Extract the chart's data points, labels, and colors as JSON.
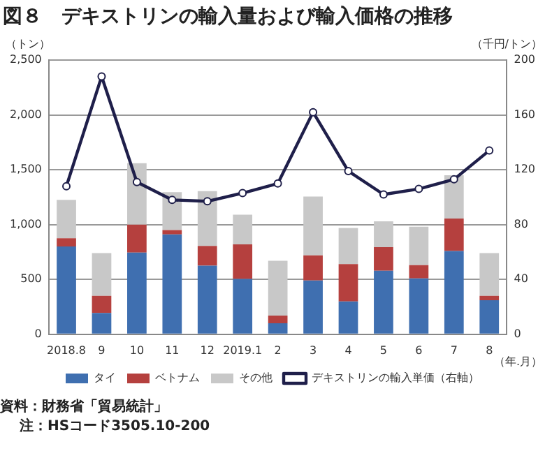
{
  "chart_data": {
    "type": "bar",
    "title": "図８　デキストリンの輸入量および輸入価格の推移",
    "ylabel": "（トン）",
    "y2label": "（千円/トン）",
    "xlabel": "（年.月）",
    "categories": [
      "2018.8",
      "9",
      "10",
      "11",
      "12",
      "2019.1",
      "2",
      "3",
      "4",
      "5",
      "6",
      "7",
      "8"
    ],
    "stacked": true,
    "series": [
      {
        "name": "タイ",
        "color": "#3f6fb0",
        "values": [
          800,
          195,
          745,
          910,
          625,
          505,
          100,
          490,
          300,
          580,
          510,
          760,
          310
        ]
      },
      {
        "name": "ベトナム",
        "color": "#b5403e",
        "values": [
          75,
          155,
          255,
          40,
          180,
          315,
          70,
          230,
          340,
          215,
          120,
          295,
          40
        ]
      },
      {
        "name": "その他",
        "color": "#c8c8c8",
        "values": [
          350,
          390,
          560,
          345,
          500,
          270,
          500,
          535,
          330,
          235,
          350,
          395,
          390
        ]
      },
      {
        "name": "デキストリンの輸入単価（右軸）",
        "type": "line",
        "axis": "y2",
        "color": "#1f1f4a",
        "marker": "circle",
        "values": [
          108,
          188,
          111,
          98,
          97,
          103,
          110,
          162,
          119,
          102,
          106,
          113,
          134
        ]
      }
    ],
    "ylim": [
      0,
      2500
    ],
    "yticks": [
      0,
      {
        "value": 500,
        "label": "500"
      },
      {
        "value": 1000,
        "label": "1,000"
      },
      {
        "value": 1500,
        "label": "1,500"
      },
      {
        "value": 2000,
        "label": "2,000"
      },
      {
        "value": 2500,
        "label": "2,500"
      }
    ],
    "y2lim": [
      0,
      200
    ],
    "y2ticks": [
      0,
      40,
      80,
      120,
      160,
      200
    ],
    "grid": "y",
    "legend": "bottom",
    "annotations": [
      "資料：財務省「貿易統計」",
      "注：HSコード3505.10-200"
    ]
  }
}
